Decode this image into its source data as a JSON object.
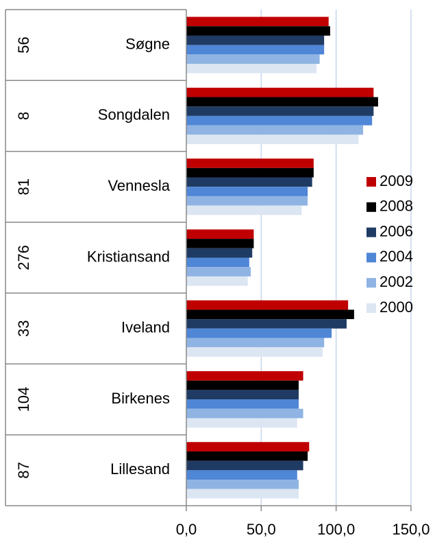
{
  "chart_data": {
    "type": "barh",
    "categories": [
      "Søgne",
      "Songdalen",
      "Vennesla",
      "Kristiansand",
      "Iveland",
      "Birkenes",
      "Lillesand"
    ],
    "category_groups": [
      "56",
      "8",
      "81",
      "276",
      "33",
      "104",
      "87"
    ],
    "series": [
      {
        "name": "2009",
        "color": "#c00000",
        "values": [
          95,
          125,
          85,
          45,
          108,
          78,
          82
        ]
      },
      {
        "name": "2008",
        "color": "#000000",
        "values": [
          96,
          128,
          85,
          45,
          112,
          75,
          81
        ]
      },
      {
        "name": "2006",
        "color": "#1f3b64",
        "values": [
          92,
          125,
          84,
          44,
          107,
          75,
          78
        ]
      },
      {
        "name": "2004",
        "color": "#4f86d6",
        "values": [
          92,
          124,
          81,
          42,
          97,
          75,
          74
        ]
      },
      {
        "name": "2002",
        "color": "#8fb4e3",
        "values": [
          89,
          118,
          81,
          43,
          92,
          78,
          75
        ]
      },
      {
        "name": "2000",
        "color": "#dce6f2",
        "values": [
          87,
          115,
          77,
          41,
          91,
          74,
          75
        ]
      }
    ],
    "xlim": [
      0,
      150
    ],
    "xticks": [
      {
        "value": 0,
        "label": "0,0"
      },
      {
        "value": 50,
        "label": "50,0"
      },
      {
        "value": 100,
        "label": "100,0"
      },
      {
        "value": 150,
        "label": "150,0"
      }
    ],
    "grid": true,
    "legend": "right"
  }
}
